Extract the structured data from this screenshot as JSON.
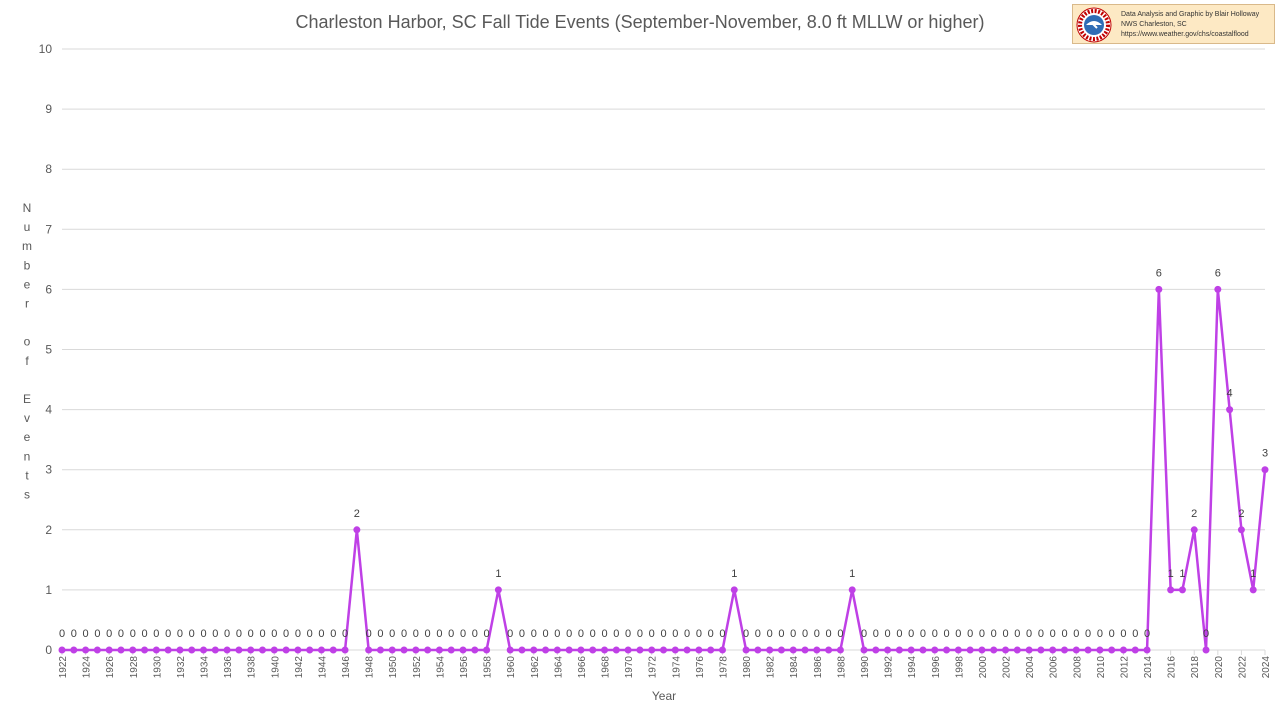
{
  "credit": {
    "line1": "Data Analysis and Graphic by Blair Holloway",
    "line2": "NWS Charleston, SC",
    "line3": "https://www.weather.gov/chs/coastalflood",
    "logo_icon": "nws-logo-icon",
    "logo_text_top": "NATIONAL WEATHER SERVICE"
  },
  "chart_data": {
    "type": "line",
    "title": "Charleston Harbor, SC Fall Tide Events (September-November, 8.0 ft MLLW or higher)",
    "xlabel": "Year",
    "ylabel": "Number of Events",
    "ylim": [
      0,
      10
    ],
    "yticks": [
      "0",
      "1",
      "2",
      "3",
      "4",
      "5",
      "6",
      "7",
      "8",
      "9",
      "10"
    ],
    "grid": true,
    "color": "#bf40e6",
    "x_start": 1922,
    "x_end": 2024,
    "xtick_labels": [
      "1922",
      "1924",
      "1926",
      "1928",
      "1930",
      "1932",
      "1934",
      "1936",
      "1938",
      "1940",
      "1942",
      "1944",
      "1946",
      "1948",
      "1950",
      "1952",
      "1954",
      "1956",
      "1958",
      "1960",
      "1962",
      "1964",
      "1966",
      "1968",
      "1970",
      "1972",
      "1974",
      "1976",
      "1978",
      "1980",
      "1982",
      "1984",
      "1986",
      "1988",
      "1990",
      "1992",
      "1994",
      "1996",
      "1998",
      "2000",
      "2002",
      "2004",
      "2006",
      "2008",
      "2010",
      "2012",
      "2014",
      "2016",
      "2018",
      "2020",
      "2022",
      "2024"
    ],
    "values": [
      0,
      0,
      0,
      0,
      0,
      0,
      0,
      0,
      0,
      0,
      0,
      0,
      0,
      0,
      0,
      0,
      0,
      0,
      0,
      0,
      0,
      0,
      0,
      0,
      0,
      2,
      0,
      0,
      0,
      0,
      0,
      0,
      0,
      0,
      0,
      0,
      0,
      1,
      0,
      0,
      0,
      0,
      0,
      0,
      0,
      0,
      0,
      0,
      0,
      0,
      0,
      0,
      0,
      0,
      0,
      0,
      0,
      1,
      0,
      0,
      0,
      0,
      0,
      0,
      0,
      0,
      0,
      1,
      0,
      0,
      0,
      0,
      0,
      0,
      0,
      0,
      0,
      0,
      0,
      0,
      0,
      0,
      0,
      0,
      0,
      0,
      0,
      0,
      0,
      0,
      0,
      0,
      0,
      6,
      1,
      1,
      2,
      0,
      6,
      4,
      2,
      1,
      3
    ]
  }
}
